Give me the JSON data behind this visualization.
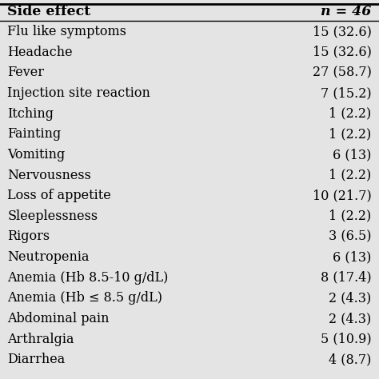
{
  "header_left": "Side effect",
  "header_right": "n = 46",
  "rows": [
    [
      "Flu like symptoms",
      "15 (32.6)"
    ],
    [
      "Headache",
      "15 (32.6)"
    ],
    [
      "Fever",
      "27 (58.7)"
    ],
    [
      "Injection site reaction",
      "7 (15.2)"
    ],
    [
      "Itching",
      "1 (2.2)"
    ],
    [
      "Fainting",
      "1 (2.2)"
    ],
    [
      "Vomiting",
      "6 (13)"
    ],
    [
      "Nervousness",
      "1 (2.2)"
    ],
    [
      "Loss of appetite",
      "10 (21.7)"
    ],
    [
      "Sleeplessness",
      "1 (2.2)"
    ],
    [
      "Rigors",
      "3 (6.5)"
    ],
    [
      "Neutropenia",
      "6 (13)"
    ],
    [
      "Anemia (Hb 8.5-10 g/dL)",
      "8 (17.4)"
    ],
    [
      "Anemia (Hb ≤ 8.5 g/dL)",
      "2 (4.3)"
    ],
    [
      "Abdominal pain",
      "2 (4.3)"
    ],
    [
      "Arthralgia",
      "5 (10.9)"
    ],
    [
      "Diarrhea",
      "4 (8.7)"
    ]
  ],
  "bg_color": "#e4e4e4",
  "text_color": "#000000",
  "header_fontsize": 12.5,
  "row_fontsize": 11.5,
  "fig_width": 4.74,
  "fig_height": 4.74
}
